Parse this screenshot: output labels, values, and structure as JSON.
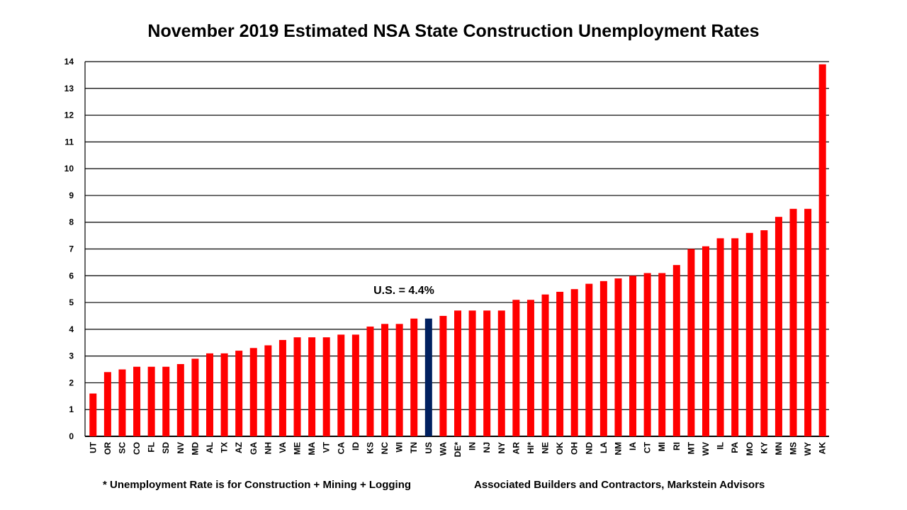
{
  "chart_data": {
    "type": "bar",
    "title": "November 2019 Estimated NSA State Construction Unemployment Rates",
    "xlabel": "",
    "ylabel": "",
    "ylim": [
      0,
      14
    ],
    "yticks": [
      0,
      1,
      2,
      3,
      4,
      5,
      6,
      7,
      8,
      9,
      10,
      11,
      12,
      13,
      14
    ],
    "grid": true,
    "categories": [
      "UT",
      "OR",
      "SC",
      "CO",
      "FL",
      "SD",
      "NV",
      "MD",
      "AL",
      "TX",
      "AZ",
      "GA",
      "NH",
      "VA",
      "ME",
      "MA",
      "VT",
      "CA",
      "ID",
      "KS",
      "NC",
      "WI",
      "TN",
      "US",
      "WA",
      "DE*",
      "IN",
      "NJ",
      "NY",
      "AR",
      "HI*",
      "NE",
      "OK",
      "OH",
      "ND",
      "LA",
      "NM",
      "IA",
      "CT",
      "MI",
      "RI",
      "MT",
      "WV",
      "IL",
      "PA",
      "MO",
      "KY",
      "MN",
      "MS",
      "WY",
      "AK"
    ],
    "values": [
      1.6,
      2.4,
      2.5,
      2.6,
      2.6,
      2.6,
      2.7,
      2.9,
      3.1,
      3.1,
      3.2,
      3.3,
      3.4,
      3.6,
      3.7,
      3.7,
      3.7,
      3.8,
      3.8,
      4.1,
      4.2,
      4.2,
      4.4,
      4.4,
      4.5,
      4.7,
      4.7,
      4.7,
      4.7,
      5.1,
      5.1,
      5.3,
      5.4,
      5.5,
      5.7,
      5.8,
      5.9,
      6.0,
      6.1,
      6.1,
      6.4,
      7.0,
      7.1,
      7.4,
      7.4,
      7.6,
      7.7,
      8.2,
      8.5,
      8.5,
      13.9
    ],
    "highlight_category": "US",
    "colors": {
      "bar": "#ff0000",
      "highlight": "#002060"
    },
    "annotation": "U.S. = 4.4%"
  },
  "footnotes": {
    "left": "* Unemployment Rate is for Construction + Mining + Logging",
    "right": "Associated Builders and Contractors, Markstein Advisors"
  }
}
